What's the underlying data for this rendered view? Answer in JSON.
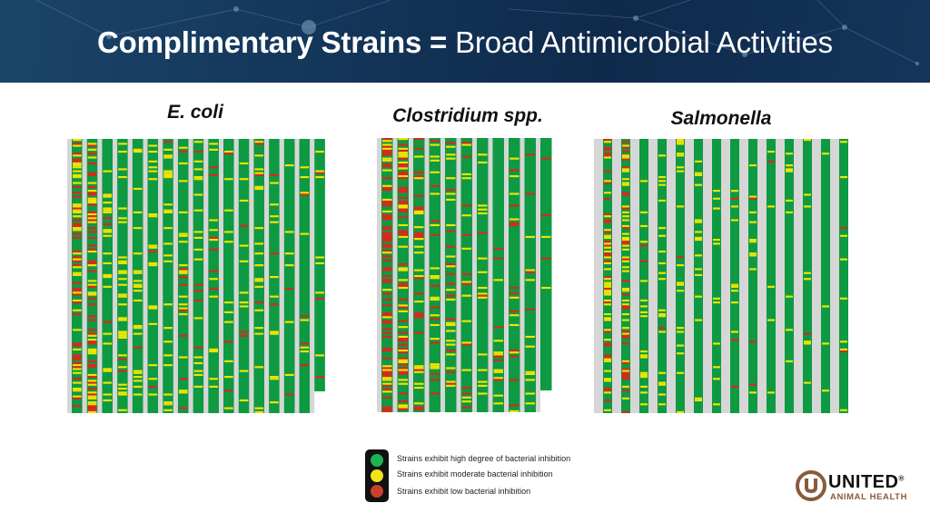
{
  "header": {
    "title_bold": "Complimentary Strains =",
    "title_rest": "Broad Antimicrobial Activities"
  },
  "panels": [
    {
      "title": "E. coli"
    },
    {
      "title": "Clostridium spp."
    },
    {
      "title": "Salmonella"
    }
  ],
  "legend": {
    "high": "Strains exhibit high degree of bacterial inhibition",
    "moderate": "Strains exhibit moderate bacterial inhibition",
    "low": "Strains exhibit low bacterial inhibition"
  },
  "colors": {
    "green": "#0d9a43",
    "yellow": "#f2e400",
    "red": "#d8281e",
    "header_dark": "#0f2a4b",
    "brand_brown": "#8a5a3c"
  },
  "brand": {
    "name": "UNITED",
    "trademark": "®",
    "tagline": "ANIMAL HEALTH"
  }
}
